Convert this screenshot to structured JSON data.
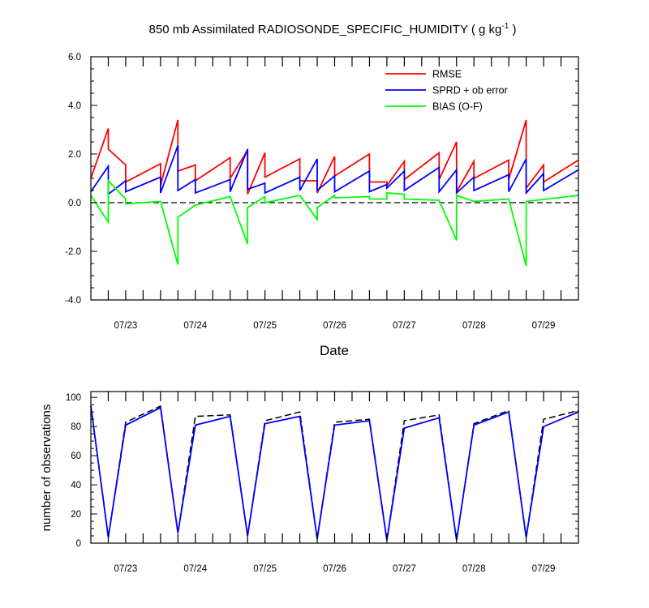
{
  "chart_data": [
    {
      "type": "line",
      "title": "850 mb Assimilated RADIOSONDE_SPECIFIC_HUMIDITY ( g kg",
      "title_sup": "-1",
      "title_end": " )",
      "xlabel": "Date",
      "ylabel": "",
      "xlim": [
        0,
        7.0
      ],
      "ylim": [
        -4.0,
        6.0
      ],
      "yticks": [
        6.0,
        4.0,
        2.0,
        0.0,
        -2.0,
        -4.0
      ],
      "ytick_labels": [
        "6.0",
        "4.0",
        "2.0",
        "0.0",
        "-2.0",
        "-4.0"
      ],
      "xtick_labels": [
        "07/23",
        "07/24",
        "07/25",
        "07/26",
        "07/27",
        "07/28",
        "07/29"
      ],
      "xtick_positions": [
        0.5,
        1.5,
        2.5,
        3.5,
        4.5,
        5.5,
        6.5
      ],
      "reference_line": 0.0,
      "legend_position": "top-right",
      "series": [
        {
          "name": "RMSE",
          "color": "#ff0000",
          "points": [
            [
              0.0,
              1.0
            ],
            [
              0.25,
              3.05
            ],
            [
              0.25,
              2.2
            ],
            [
              0.5,
              1.55
            ],
            [
              0.5,
              0.85
            ],
            [
              1.0,
              1.6
            ],
            [
              1.0,
              0.7
            ],
            [
              1.25,
              3.4
            ],
            [
              1.25,
              1.3
            ],
            [
              1.5,
              1.55
            ],
            [
              1.5,
              0.9
            ],
            [
              2.0,
              1.85
            ],
            [
              2.0,
              1.0
            ],
            [
              2.25,
              2.15
            ],
            [
              2.25,
              0.35
            ],
            [
              2.5,
              2.05
            ],
            [
              2.5,
              1.05
            ],
            [
              3.0,
              1.8
            ],
            [
              3.0,
              0.9
            ],
            [
              3.25,
              0.9
            ],
            [
              3.25,
              0.4
            ],
            [
              3.5,
              1.9
            ],
            [
              3.5,
              1.1
            ],
            [
              4.0,
              2.0
            ],
            [
              4.0,
              0.85
            ],
            [
              4.25,
              0.85
            ],
            [
              4.25,
              0.7
            ],
            [
              4.5,
              1.7
            ],
            [
              4.5,
              0.95
            ],
            [
              5.0,
              2.05
            ],
            [
              5.0,
              0.95
            ],
            [
              5.25,
              2.5
            ],
            [
              5.25,
              0.45
            ],
            [
              5.5,
              1.7
            ],
            [
              5.5,
              1.0
            ],
            [
              6.0,
              1.75
            ],
            [
              6.0,
              0.95
            ],
            [
              6.25,
              3.4
            ],
            [
              6.25,
              0.6
            ],
            [
              6.5,
              1.55
            ],
            [
              6.5,
              0.85
            ],
            [
              7.0,
              1.75
            ]
          ]
        },
        {
          "name": "SPRD + ob error",
          "color": "#0000ff",
          "points": [
            [
              0.0,
              0.45
            ],
            [
              0.25,
              1.5
            ],
            [
              0.25,
              0.35
            ],
            [
              0.5,
              0.9
            ],
            [
              0.5,
              0.45
            ],
            [
              1.0,
              1.05
            ],
            [
              1.0,
              0.4
            ],
            [
              1.25,
              2.35
            ],
            [
              1.25,
              0.5
            ],
            [
              1.5,
              0.95
            ],
            [
              1.5,
              0.4
            ],
            [
              2.0,
              0.95
            ],
            [
              2.0,
              0.45
            ],
            [
              2.25,
              2.2
            ],
            [
              2.25,
              0.55
            ],
            [
              2.5,
              0.8
            ],
            [
              2.5,
              0.4
            ],
            [
              3.0,
              1.05
            ],
            [
              3.0,
              0.5
            ],
            [
              3.25,
              1.8
            ],
            [
              3.25,
              0.5
            ],
            [
              3.5,
              1.1
            ],
            [
              3.5,
              0.45
            ],
            [
              4.0,
              1.3
            ],
            [
              4.0,
              0.45
            ],
            [
              4.25,
              0.75
            ],
            [
              4.25,
              0.6
            ],
            [
              4.5,
              1.3
            ],
            [
              4.5,
              0.5
            ],
            [
              5.0,
              1.45
            ],
            [
              5.0,
              0.45
            ],
            [
              5.25,
              1.35
            ],
            [
              5.25,
              0.4
            ],
            [
              5.5,
              1.05
            ],
            [
              5.5,
              0.5
            ],
            [
              6.0,
              1.15
            ],
            [
              6.0,
              0.45
            ],
            [
              6.25,
              1.8
            ],
            [
              6.25,
              0.4
            ],
            [
              6.5,
              1.2
            ],
            [
              6.5,
              0.5
            ],
            [
              7.0,
              1.35
            ]
          ]
        },
        {
          "name": "BIAS (O-F)",
          "color": "#00ff00",
          "points": [
            [
              0.0,
              0.3
            ],
            [
              0.25,
              -0.8
            ],
            [
              0.25,
              0.9
            ],
            [
              0.5,
              0.15
            ],
            [
              0.5,
              -0.05
            ],
            [
              1.0,
              0.05
            ],
            [
              1.25,
              -2.55
            ],
            [
              1.25,
              -0.6
            ],
            [
              1.5,
              -0.1
            ],
            [
              2.0,
              0.25
            ],
            [
              2.25,
              -1.7
            ],
            [
              2.25,
              -0.2
            ],
            [
              2.5,
              0.25
            ],
            [
              2.5,
              0.0
            ],
            [
              3.0,
              0.3
            ],
            [
              3.25,
              -0.7
            ],
            [
              3.25,
              -0.2
            ],
            [
              3.5,
              0.3
            ],
            [
              3.5,
              0.2
            ],
            [
              4.0,
              0.25
            ],
            [
              4.0,
              0.15
            ],
            [
              4.25,
              0.15
            ],
            [
              4.25,
              0.4
            ],
            [
              4.5,
              0.35
            ],
            [
              4.5,
              0.15
            ],
            [
              5.0,
              0.1
            ],
            [
              5.25,
              -1.55
            ],
            [
              5.25,
              0.3
            ],
            [
              5.5,
              0.05
            ],
            [
              6.0,
              0.15
            ],
            [
              6.25,
              -2.6
            ],
            [
              6.25,
              0.05
            ],
            [
              7.0,
              0.3
            ]
          ]
        }
      ]
    },
    {
      "type": "line",
      "title": "",
      "xlabel": "",
      "ylabel": "number of observations",
      "xlim": [
        0,
        7.0
      ],
      "ylim": [
        0,
        104
      ],
      "yticks": [
        0,
        20,
        40,
        60,
        80,
        100
      ],
      "ytick_labels": [
        "0",
        "20",
        "40",
        "60",
        "80",
        "100"
      ],
      "xtick_labels": [
        "07/23",
        "07/24",
        "07/25",
        "07/26",
        "07/27",
        "07/28",
        "07/29"
      ],
      "xtick_positions": [
        0.5,
        1.5,
        2.5,
        3.5,
        4.5,
        5.5,
        6.5
      ],
      "series": [
        {
          "style": "dashed",
          "color": "#000000",
          "points": [
            [
              0.0,
              94
            ],
            [
              0.25,
              4
            ],
            [
              0.5,
              83
            ],
            [
              1.0,
              94
            ],
            [
              1.25,
              7
            ],
            [
              1.5,
              87
            ],
            [
              2.0,
              88
            ],
            [
              2.25,
              5
            ],
            [
              2.5,
              84
            ],
            [
              3.0,
              90
            ],
            [
              3.25,
              3
            ],
            [
              3.5,
              83
            ],
            [
              4.0,
              85
            ],
            [
              4.25,
              2
            ],
            [
              4.5,
              84
            ],
            [
              5.0,
              88
            ],
            [
              5.25,
              2
            ],
            [
              5.5,
              82
            ],
            [
              6.0,
              91
            ],
            [
              6.25,
              4
            ],
            [
              6.5,
              85
            ],
            [
              7.0,
              91
            ]
          ]
        },
        {
          "style": "solid",
          "color": "#0000ff",
          "points": [
            [
              0.0,
              94
            ],
            [
              0.25,
              4
            ],
            [
              0.5,
              81
            ],
            [
              1.0,
              93
            ],
            [
              1.25,
              7
            ],
            [
              1.5,
              81
            ],
            [
              2.0,
              87
            ],
            [
              2.25,
              5
            ],
            [
              2.5,
              82
            ],
            [
              3.0,
              87
            ],
            [
              3.25,
              3
            ],
            [
              3.5,
              81
            ],
            [
              4.0,
              84
            ],
            [
              4.25,
              2
            ],
            [
              4.5,
              79
            ],
            [
              5.0,
              86
            ],
            [
              5.25,
              2
            ],
            [
              5.5,
              81
            ],
            [
              6.0,
              90
            ],
            [
              6.25,
              4
            ],
            [
              6.5,
              80
            ],
            [
              7.0,
              90
            ]
          ]
        }
      ]
    }
  ]
}
